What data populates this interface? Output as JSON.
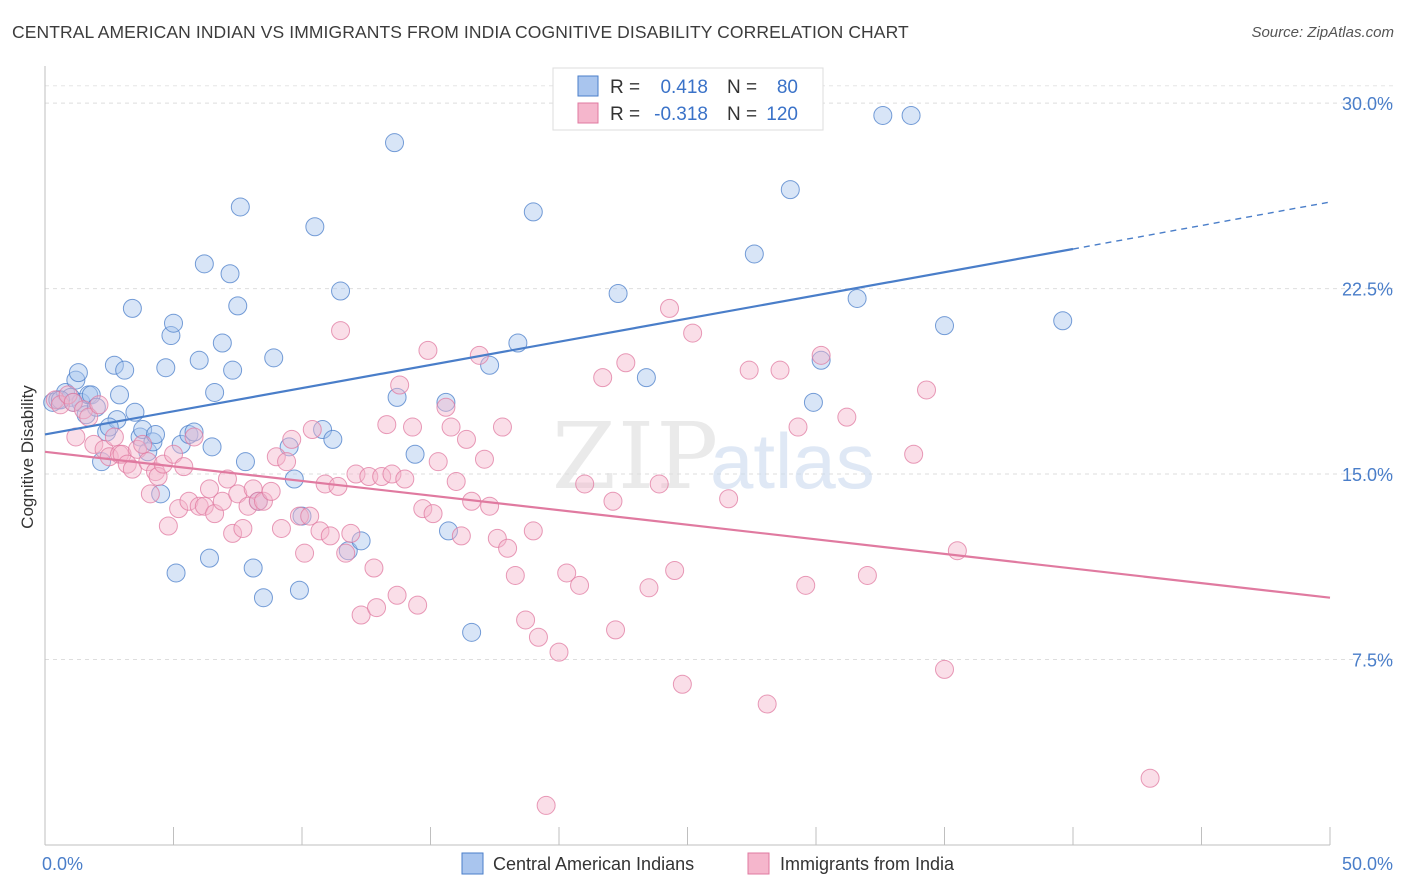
{
  "title": "CENTRAL AMERICAN INDIAN VS IMMIGRANTS FROM INDIA COGNITIVE DISABILITY CORRELATION CHART",
  "source": "Source: ZipAtlas.com",
  "watermark": {
    "zip": "ZIP",
    "atlas": "atlas"
  },
  "chart_data": {
    "type": "scatter",
    "ylabel": "Cognitive Disability",
    "xlabel": "",
    "xlim": [
      0,
      50
    ],
    "ylim": [
      0,
      31.5
    ],
    "x_tick_labels": [
      "0.0%",
      "50.0%"
    ],
    "y_ticks": [
      7.5,
      15.0,
      22.5,
      30.0
    ],
    "y_tick_labels": [
      "7.5%",
      "15.0%",
      "22.5%",
      "30.0%"
    ],
    "grid": "horizontal dashed",
    "legend_position": "top-center",
    "stats": [
      {
        "r_label": "R =",
        "r": "0.418",
        "n_label": "N =",
        "n": "80"
      },
      {
        "r_label": "R =",
        "r": "-0.318",
        "n_label": "N =",
        "n": "120"
      }
    ],
    "series": [
      {
        "name": "Central American Indians",
        "color": "#4a7ec9",
        "fill": "#a9c5ee",
        "trend": {
          "x0": 0,
          "y0": 16.6,
          "x1": 40,
          "y1": 24.1,
          "dashed_to_x": 50,
          "dashed_to_y": 26.0
        },
        "points": [
          [
            0.3,
            17.9
          ],
          [
            0.5,
            18.0
          ],
          [
            0.8,
            18.3
          ],
          [
            1.0,
            18.1
          ],
          [
            1.2,
            18.8
          ],
          [
            1.3,
            19.1
          ],
          [
            1.4,
            17.9
          ],
          [
            1.6,
            17.4
          ],
          [
            1.7,
            18.2
          ],
          [
            1.8,
            18.2
          ],
          [
            2.2,
            15.5
          ],
          [
            2.4,
            16.7
          ],
          [
            2.7,
            19.4
          ],
          [
            2.8,
            17.2
          ],
          [
            2.9,
            18.2
          ],
          [
            3.1,
            19.2
          ],
          [
            3.4,
            21.7
          ],
          [
            3.5,
            17.5
          ],
          [
            3.7,
            16.5
          ],
          [
            3.8,
            16.8
          ],
          [
            4.0,
            15.9
          ],
          [
            4.2,
            16.3
          ],
          [
            4.3,
            16.6
          ],
          [
            4.5,
            14.2
          ],
          [
            4.7,
            19.3
          ],
          [
            4.9,
            20.6
          ],
          [
            5.0,
            21.1
          ],
          [
            5.1,
            11.0
          ],
          [
            5.3,
            16.2
          ],
          [
            5.6,
            16.6
          ],
          [
            5.8,
            16.7
          ],
          [
            6.0,
            19.6
          ],
          [
            6.2,
            23.5
          ],
          [
            6.4,
            11.6
          ],
          [
            6.5,
            16.1
          ],
          [
            6.6,
            18.3
          ],
          [
            6.9,
            20.3
          ],
          [
            7.2,
            23.1
          ],
          [
            7.3,
            19.2
          ],
          [
            7.5,
            21.8
          ],
          [
            7.6,
            25.8
          ],
          [
            7.8,
            15.5
          ],
          [
            8.1,
            11.2
          ],
          [
            8.3,
            13.9
          ],
          [
            8.5,
            10.0
          ],
          [
            8.9,
            19.7
          ],
          [
            9.5,
            16.1
          ],
          [
            9.7,
            14.8
          ],
          [
            9.9,
            10.3
          ],
          [
            10.0,
            13.3
          ],
          [
            10.5,
            25.0
          ],
          [
            10.8,
            16.8
          ],
          [
            11.2,
            16.4
          ],
          [
            11.5,
            22.4
          ],
          [
            11.8,
            11.9
          ],
          [
            12.3,
            12.3
          ],
          [
            13.6,
            28.4
          ],
          [
            13.7,
            18.1
          ],
          [
            14.4,
            15.8
          ],
          [
            15.6,
            17.9
          ],
          [
            15.7,
            12.7
          ],
          [
            16.6,
            8.6
          ],
          [
            17.3,
            19.4
          ],
          [
            18.4,
            20.3
          ],
          [
            19.0,
            25.6
          ],
          [
            22.3,
            22.3
          ],
          [
            23.4,
            18.9
          ],
          [
            27.6,
            23.9
          ],
          [
            29.0,
            26.5
          ],
          [
            29.9,
            17.9
          ],
          [
            30.2,
            19.6
          ],
          [
            31.6,
            22.1
          ],
          [
            32.6,
            29.5
          ],
          [
            33.7,
            29.5
          ],
          [
            35.0,
            21.0
          ],
          [
            39.6,
            21.2
          ],
          [
            1.1,
            17.9
          ],
          [
            2.0,
            17.7
          ],
          [
            0.6,
            18.0
          ],
          [
            2.5,
            16.9
          ]
        ]
      },
      {
        "name": "Immigrants from India",
        "color": "#e07aa0",
        "fill": "#f5b6cc",
        "trend": {
          "x0": 0,
          "y0": 15.9,
          "x1": 50,
          "y1": 10.0
        },
        "points": [
          [
            0.4,
            18.0
          ],
          [
            0.6,
            17.8
          ],
          [
            0.9,
            18.2
          ],
          [
            1.1,
            17.9
          ],
          [
            1.2,
            16.5
          ],
          [
            1.5,
            17.6
          ],
          [
            1.7,
            17.3
          ],
          [
            1.9,
            16.2
          ],
          [
            2.1,
            17.8
          ],
          [
            2.3,
            16.0
          ],
          [
            2.5,
            15.7
          ],
          [
            2.7,
            16.5
          ],
          [
            2.9,
            15.8
          ],
          [
            3.0,
            15.8
          ],
          [
            3.2,
            15.4
          ],
          [
            3.4,
            15.2
          ],
          [
            3.6,
            16.0
          ],
          [
            3.8,
            16.2
          ],
          [
            4.0,
            15.5
          ],
          [
            4.1,
            14.2
          ],
          [
            4.3,
            15.1
          ],
          [
            4.4,
            14.9
          ],
          [
            4.6,
            15.4
          ],
          [
            4.8,
            12.9
          ],
          [
            5.0,
            15.8
          ],
          [
            5.2,
            13.6
          ],
          [
            5.4,
            15.3
          ],
          [
            5.6,
            13.9
          ],
          [
            5.8,
            16.5
          ],
          [
            6.0,
            13.7
          ],
          [
            6.2,
            13.7
          ],
          [
            6.4,
            14.4
          ],
          [
            6.6,
            13.4
          ],
          [
            6.9,
            13.9
          ],
          [
            7.1,
            14.8
          ],
          [
            7.3,
            12.6
          ],
          [
            7.5,
            14.2
          ],
          [
            7.7,
            12.8
          ],
          [
            7.9,
            13.7
          ],
          [
            8.1,
            14.4
          ],
          [
            8.3,
            13.9
          ],
          [
            8.5,
            13.9
          ],
          [
            8.8,
            14.3
          ],
          [
            9.0,
            15.7
          ],
          [
            9.2,
            12.8
          ],
          [
            9.4,
            15.5
          ],
          [
            9.6,
            16.4
          ],
          [
            9.9,
            13.3
          ],
          [
            10.1,
            11.8
          ],
          [
            10.3,
            13.3
          ],
          [
            10.4,
            16.8
          ],
          [
            10.7,
            12.7
          ],
          [
            10.9,
            14.6
          ],
          [
            11.1,
            12.5
          ],
          [
            11.4,
            14.5
          ],
          [
            11.5,
            20.8
          ],
          [
            11.7,
            11.8
          ],
          [
            11.9,
            12.6
          ],
          [
            12.1,
            15.0
          ],
          [
            12.3,
            9.3
          ],
          [
            12.6,
            14.9
          ],
          [
            12.8,
            11.2
          ],
          [
            12.9,
            9.6
          ],
          [
            13.1,
            14.9
          ],
          [
            13.3,
            17.0
          ],
          [
            13.5,
            15.0
          ],
          [
            13.7,
            10.1
          ],
          [
            13.8,
            18.6
          ],
          [
            14.0,
            14.8
          ],
          [
            14.3,
            16.9
          ],
          [
            14.5,
            9.7
          ],
          [
            14.7,
            13.6
          ],
          [
            14.9,
            20.0
          ],
          [
            15.1,
            13.4
          ],
          [
            15.3,
            15.5
          ],
          [
            15.6,
            17.7
          ],
          [
            15.8,
            16.9
          ],
          [
            16.0,
            14.7
          ],
          [
            16.2,
            12.5
          ],
          [
            16.4,
            16.4
          ],
          [
            16.6,
            13.9
          ],
          [
            16.9,
            19.8
          ],
          [
            17.1,
            15.6
          ],
          [
            17.3,
            13.7
          ],
          [
            17.6,
            12.4
          ],
          [
            17.8,
            16.9
          ],
          [
            18.0,
            12.0
          ],
          [
            18.3,
            10.9
          ],
          [
            18.7,
            9.1
          ],
          [
            19.0,
            12.7
          ],
          [
            19.2,
            8.4
          ],
          [
            19.5,
            1.6
          ],
          [
            20.0,
            7.8
          ],
          [
            20.3,
            11.0
          ],
          [
            20.8,
            10.5
          ],
          [
            21.0,
            14.6
          ],
          [
            21.7,
            18.9
          ],
          [
            22.1,
            13.9
          ],
          [
            22.2,
            8.7
          ],
          [
            22.6,
            19.5
          ],
          [
            23.5,
            10.4
          ],
          [
            23.9,
            14.6
          ],
          [
            24.3,
            21.7
          ],
          [
            24.5,
            11.1
          ],
          [
            24.8,
            6.5
          ],
          [
            25.2,
            20.7
          ],
          [
            26.6,
            14.0
          ],
          [
            27.4,
            19.2
          ],
          [
            28.1,
            5.7
          ],
          [
            28.6,
            19.2
          ],
          [
            29.3,
            16.9
          ],
          [
            29.6,
            10.5
          ],
          [
            30.2,
            19.8
          ],
          [
            31.2,
            17.3
          ],
          [
            32.0,
            10.9
          ],
          [
            33.8,
            15.8
          ],
          [
            34.3,
            18.4
          ],
          [
            35.0,
            7.1
          ],
          [
            35.5,
            11.9
          ],
          [
            43.0,
            2.7
          ]
        ]
      }
    ]
  }
}
